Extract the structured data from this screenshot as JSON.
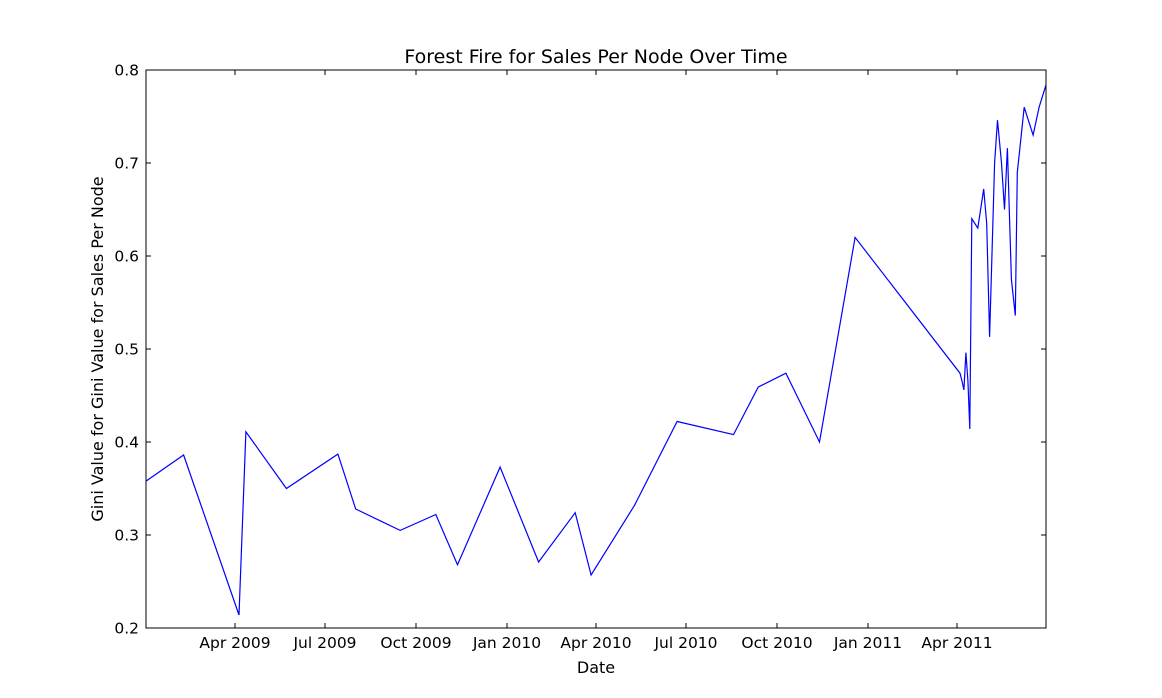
{
  "chart_data": {
    "type": "line",
    "title": "Forest Fire for Sales Per Node Over Time",
    "xlabel": "Date",
    "ylabel": "Gini Value for Gini Value for Sales Per Node",
    "xlim": [
      "2009-01-01",
      "2011-06-30"
    ],
    "ylim": [
      0.2,
      0.8
    ],
    "grid": false,
    "x_ticks": [
      {
        "date": "2009-04-01",
        "label": "Apr 2009"
      },
      {
        "date": "2009-07-01",
        "label": "Jul 2009"
      },
      {
        "date": "2009-10-01",
        "label": "Oct 2009"
      },
      {
        "date": "2010-01-01",
        "label": "Jan 2010"
      },
      {
        "date": "2010-04-01",
        "label": "Apr 2010"
      },
      {
        "date": "2010-07-01",
        "label": "Jul 2010"
      },
      {
        "date": "2010-10-01",
        "label": "Oct 2010"
      },
      {
        "date": "2011-01-01",
        "label": "Jan 2011"
      },
      {
        "date": "2011-04-01",
        "label": "Apr 2011"
      }
    ],
    "y_ticks": [
      0.2,
      0.3,
      0.4,
      0.5,
      0.6,
      0.7,
      0.8
    ],
    "y_tick_labels": [
      "0.2",
      "0.3",
      "0.4",
      "0.5",
      "0.6",
      "0.7",
      "0.8"
    ],
    "line_color": "#0000ff",
    "series": [
      {
        "x": [
          "2009-01-01",
          "2009-02-08",
          "2009-04-05",
          "2009-04-12",
          "2009-05-23",
          "2009-07-14",
          "2009-08-01",
          "2009-09-15",
          "2009-10-21",
          "2009-11-12",
          "2009-12-25",
          "2010-02-02",
          "2010-03-11",
          "2010-03-27",
          "2010-05-10",
          "2010-06-22",
          "2010-08-18",
          "2010-09-12",
          "2010-10-10",
          "2010-11-13",
          "2010-12-19",
          "2011-04-04",
          "2011-04-06",
          "2011-04-08",
          "2011-04-10",
          "2011-04-12",
          "2011-04-14",
          "2011-04-16",
          "2011-04-22",
          "2011-04-28",
          "2011-05-01",
          "2011-05-04",
          "2011-05-09",
          "2011-05-12",
          "2011-05-16",
          "2011-05-19",
          "2011-05-22",
          "2011-05-26",
          "2011-05-30",
          "2011-06-01",
          "2011-06-03",
          "2011-06-08",
          "2011-06-17",
          "2011-06-23",
          "2011-06-30"
        ],
        "values": [
          0.358,
          0.386,
          0.214,
          0.411,
          0.35,
          0.387,
          0.328,
          0.305,
          0.322,
          0.268,
          0.373,
          0.271,
          0.324,
          0.257,
          0.332,
          0.422,
          0.408,
          0.459,
          0.474,
          0.4,
          0.62,
          0.474,
          0.466,
          0.456,
          0.496,
          0.466,
          0.414,
          0.64,
          0.63,
          0.672,
          0.635,
          0.513,
          0.7,
          0.746,
          0.7,
          0.65,
          0.716,
          0.575,
          0.536,
          0.69,
          0.71,
          0.76,
          0.73,
          0.76,
          0.784
        ]
      }
    ]
  }
}
